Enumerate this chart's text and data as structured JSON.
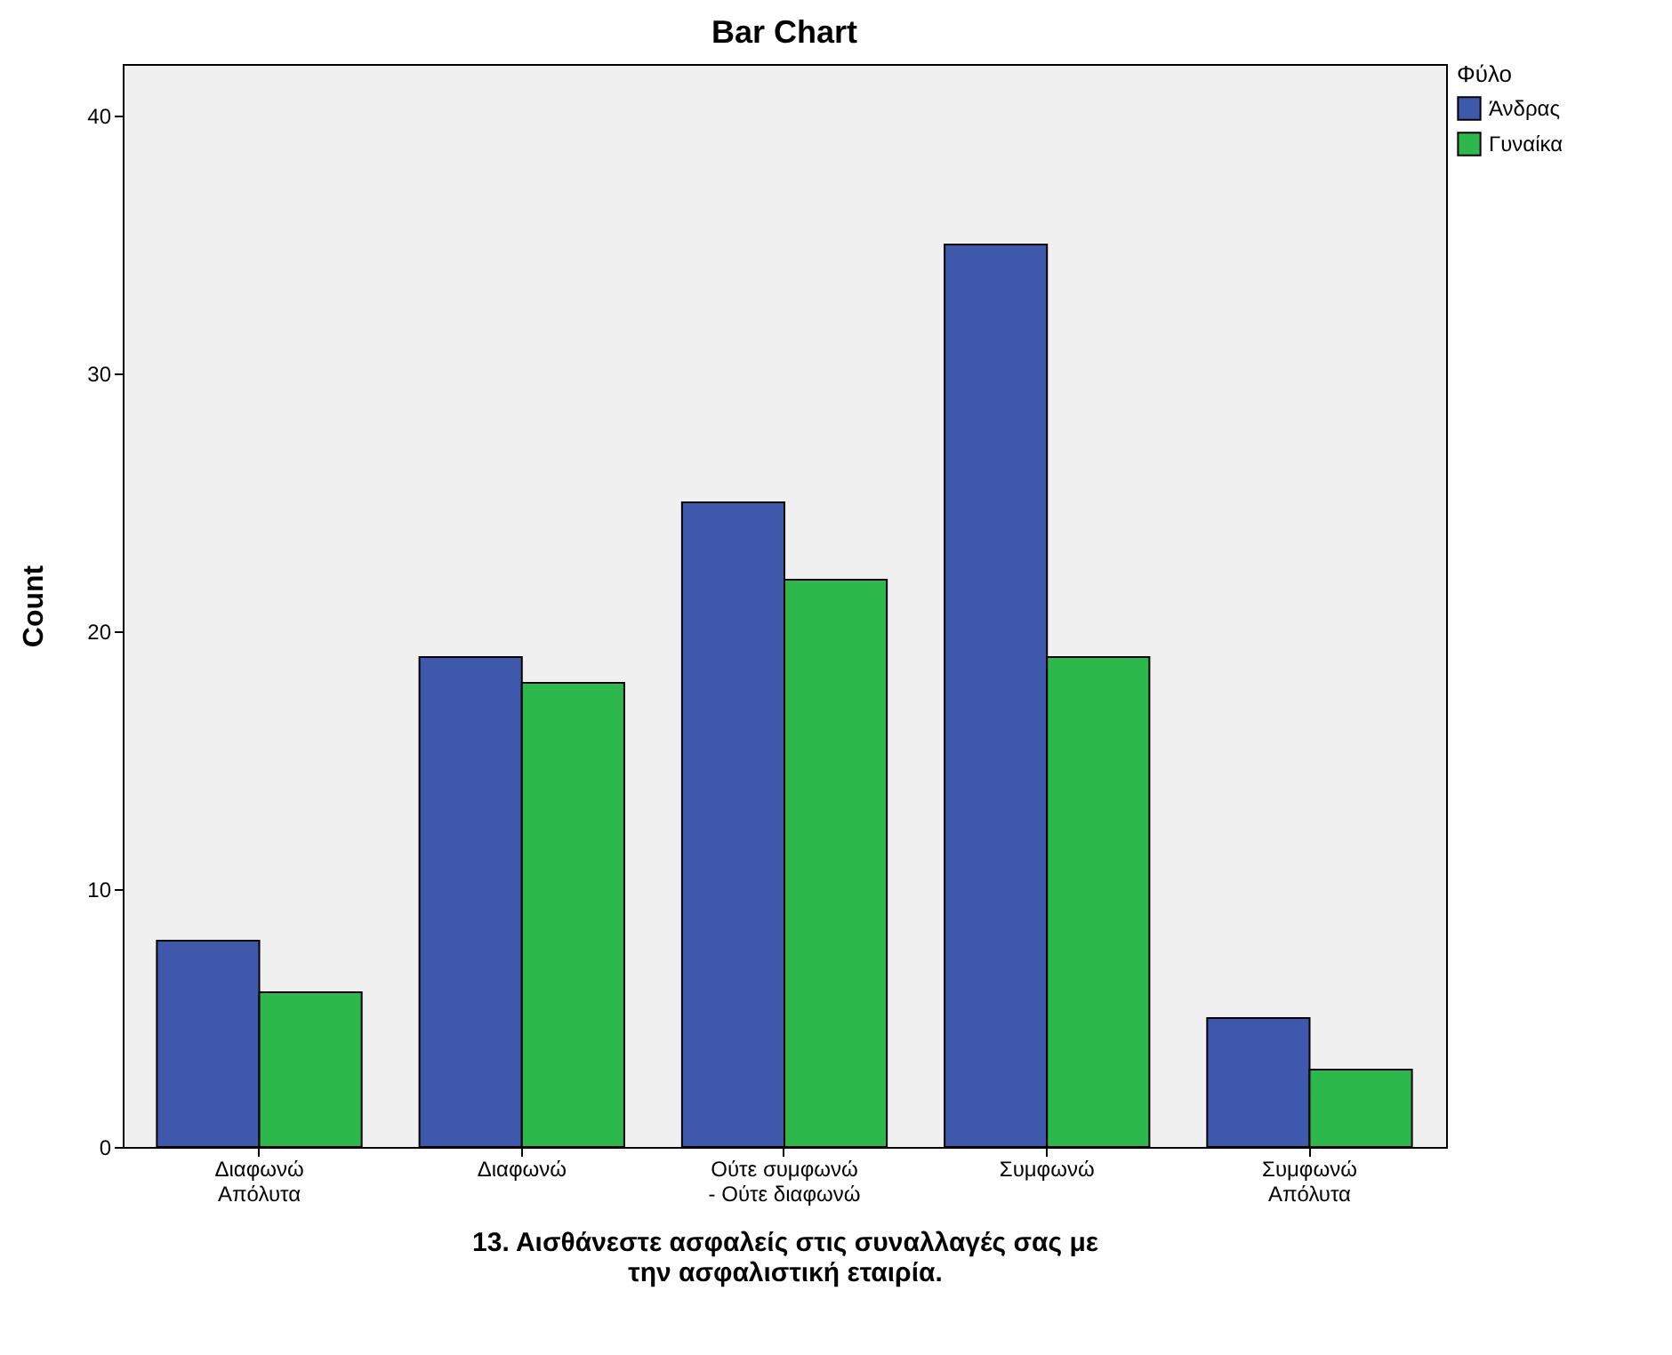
{
  "chart_data": {
    "type": "bar",
    "title": "Bar Chart",
    "xlabel": "13. Αισθάνεστε ασφαλείς στις συναλλαγές σας με\nτην ασφαλιστική εταιρία.",
    "ylabel": "Count",
    "legend_title": "Φύλο",
    "categories": [
      "Διαφωνώ\nΑπόλυτα",
      "Διαφωνώ",
      "Ούτε συμφωνώ\n- Ούτε διαφωνώ",
      "Συμφωνώ",
      "Συμφωνώ\nΑπόλυτα"
    ],
    "series": [
      {
        "name": "Άνδρας",
        "color": "#3e58ac",
        "values": [
          8,
          19,
          25,
          35,
          5
        ]
      },
      {
        "name": "Γυναίκα",
        "color": "#2db84b",
        "values": [
          6,
          18,
          22,
          19,
          3
        ]
      }
    ],
    "ylim": [
      0,
      42
    ],
    "yticks": [
      0,
      10,
      20,
      30,
      40
    ],
    "grid": false,
    "legend": "top right"
  }
}
